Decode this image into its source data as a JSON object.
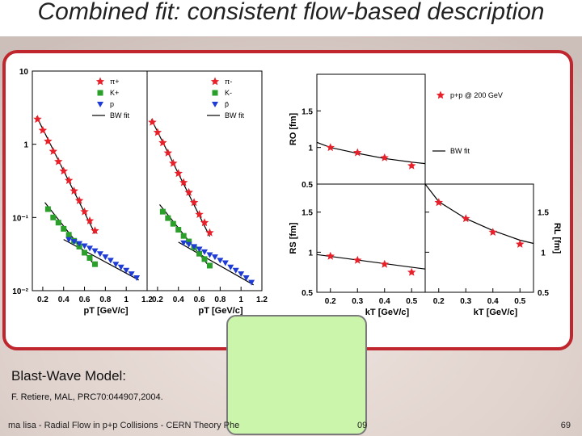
{
  "slide": {
    "title": "Combined fit: consistent flow-based description",
    "model_label": "Blast-Wave Model:",
    "citation": "F. Retiere, MAL, PRC70:044907,2004.",
    "footer": "ma lisa - Radial Flow in p+p Collisions - CERN Theory Phe",
    "footer_year": "09",
    "page_number": "69"
  },
  "colors": {
    "frame": "#c0262d",
    "overlay_box": "#ccf5ac",
    "pion": "#e8202a",
    "kaon": "#2aa02a",
    "proton": "#1f3bd6",
    "fit": "#000000"
  },
  "chart_data": [
    {
      "type": "scatter",
      "panel": "spectra-positive",
      "xlabel": "pT [GeV/c]",
      "ylabel": "",
      "log_y": true,
      "xlim": [
        0.1,
        1.2
      ],
      "ylim": [
        0.01,
        10
      ],
      "x_ticks": [
        "0.2",
        "0.4",
        "0.6",
        "0.8",
        "1",
        "1.2"
      ],
      "y_ticks": [
        "10",
        "1",
        "10-1",
        "10-2"
      ],
      "legend": [
        "π+",
        "K+",
        "p",
        "BW fit"
      ],
      "series": [
        {
          "name": "π+",
          "marker": "star",
          "color": "#e8202a",
          "x": [
            0.15,
            0.2,
            0.25,
            0.3,
            0.35,
            0.4,
            0.45,
            0.5,
            0.55,
            0.6,
            0.65,
            0.7
          ],
          "y": [
            2.2,
            1.55,
            1.1,
            0.8,
            0.58,
            0.43,
            0.32,
            0.23,
            0.17,
            0.12,
            0.09,
            0.066
          ]
        },
        {
          "name": "K+",
          "marker": "square",
          "color": "#2aa02a",
          "x": [
            0.25,
            0.3,
            0.35,
            0.4,
            0.45,
            0.5,
            0.55,
            0.6,
            0.65,
            0.7
          ],
          "y": [
            0.13,
            0.1,
            0.085,
            0.07,
            0.058,
            0.048,
            0.04,
            0.033,
            0.028,
            0.023
          ]
        },
        {
          "name": "p",
          "marker": "triangle-down",
          "color": "#1f3bd6",
          "x": [
            0.45,
            0.5,
            0.55,
            0.6,
            0.65,
            0.7,
            0.75,
            0.8,
            0.85,
            0.9,
            0.95,
            1.0,
            1.05,
            1.1
          ],
          "y": [
            0.05,
            0.047,
            0.044,
            0.041,
            0.038,
            0.035,
            0.032,
            0.029,
            0.026,
            0.023,
            0.021,
            0.019,
            0.017,
            0.015
          ]
        }
      ],
      "fits": [
        {
          "name": "BW fit",
          "x": [
            0.14,
            0.7
          ],
          "y": [
            2.4,
            0.06
          ]
        },
        {
          "name": "BW fit",
          "x": [
            0.22,
            0.7
          ],
          "y": [
            0.16,
            0.022
          ]
        },
        {
          "name": "BW fit",
          "x": [
            0.4,
            1.12
          ],
          "y": [
            0.05,
            0.014
          ]
        }
      ]
    },
    {
      "type": "scatter",
      "panel": "spectra-negative",
      "xlabel": "pT [GeV/c]",
      "ylabel": "",
      "log_y": true,
      "xlim": [
        0.1,
        1.2
      ],
      "ylim": [
        0.01,
        10
      ],
      "x_ticks": [
        "0.2",
        "0.4",
        "0.6",
        "0.8",
        "1",
        "1.2"
      ],
      "legend": [
        "π-",
        "K-",
        "p̄",
        "BW fit"
      ],
      "series": [
        {
          "name": "π-",
          "marker": "star",
          "color": "#e8202a",
          "x": [
            0.15,
            0.2,
            0.25,
            0.3,
            0.35,
            0.4,
            0.45,
            0.5,
            0.55,
            0.6,
            0.65,
            0.7
          ],
          "y": [
            2.0,
            1.45,
            1.05,
            0.76,
            0.55,
            0.4,
            0.3,
            0.22,
            0.16,
            0.11,
            0.085,
            0.062
          ]
        },
        {
          "name": "K-",
          "marker": "square",
          "color": "#2aa02a",
          "x": [
            0.25,
            0.3,
            0.35,
            0.4,
            0.45,
            0.5,
            0.55,
            0.6,
            0.65,
            0.7
          ],
          "y": [
            0.12,
            0.098,
            0.082,
            0.068,
            0.056,
            0.047,
            0.039,
            0.032,
            0.027,
            0.022
          ]
        },
        {
          "name": "p̄",
          "marker": "triangle-down",
          "color": "#1f3bd6",
          "x": [
            0.45,
            0.5,
            0.55,
            0.6,
            0.65,
            0.7,
            0.75,
            0.8,
            0.85,
            0.9,
            0.95,
            1.0,
            1.05,
            1.1
          ],
          "y": [
            0.045,
            0.043,
            0.04,
            0.037,
            0.034,
            0.031,
            0.029,
            0.026,
            0.024,
            0.021,
            0.019,
            0.017,
            0.015,
            0.013
          ]
        }
      ],
      "fits": [
        {
          "name": "BW fit",
          "x": [
            0.14,
            0.7
          ],
          "y": [
            2.2,
            0.055
          ]
        },
        {
          "name": "BW fit",
          "x": [
            0.22,
            0.7
          ],
          "y": [
            0.15,
            0.021
          ]
        },
        {
          "name": "BW fit",
          "x": [
            0.4,
            1.12
          ],
          "y": [
            0.046,
            0.012
          ]
        }
      ]
    },
    {
      "type": "scatter",
      "panel": "RO",
      "ylabel": "RO [fm]",
      "xlim": [
        0.15,
        0.55
      ],
      "ylim": [
        0.5,
        2.0
      ],
      "y_ticks": [
        "1.5",
        "1",
        "0.5"
      ],
      "legend": [
        "p+p @ 200 GeV",
        "BW fit"
      ],
      "series": [
        {
          "name": "p+p @ 200 GeV",
          "marker": "star",
          "color": "#e8202a",
          "x": [
            0.2,
            0.3,
            0.4,
            0.5
          ],
          "y": [
            1.0,
            0.93,
            0.86,
            0.75
          ]
        }
      ],
      "fits": [
        {
          "name": "BW fit",
          "x": [
            0.15,
            0.2,
            0.3,
            0.4,
            0.5,
            0.55
          ],
          "y": [
            1.07,
            1.0,
            0.92,
            0.85,
            0.8,
            0.78
          ]
        }
      ]
    },
    {
      "type": "scatter",
      "panel": "RS",
      "xlabel": "kT [GeV/c]",
      "ylabel": "RS [fm]",
      "xlim": [
        0.15,
        0.55
      ],
      "ylim": [
        0.5,
        1.85
      ],
      "x_ticks": [
        "0.2",
        "0.3",
        "0.4",
        "0.5"
      ],
      "y_ticks": [
        "1.5",
        "1",
        "0.5"
      ],
      "series": [
        {
          "name": "",
          "marker": "star",
          "color": "#e8202a",
          "x": [
            0.2,
            0.3,
            0.4,
            0.5
          ],
          "y": [
            0.95,
            0.9,
            0.85,
            0.75
          ]
        }
      ],
      "fits": [
        {
          "name": "BW fit",
          "x": [
            0.15,
            0.55
          ],
          "y": [
            0.97,
            0.79
          ]
        }
      ]
    },
    {
      "type": "scatter",
      "panel": "RL",
      "xlabel": "kT [GeV/c]",
      "ylabel": "RL [fm]",
      "xlim": [
        0.15,
        0.55
      ],
      "ylim": [
        0.5,
        1.85
      ],
      "x_ticks": [
        "0.2",
        "0.3",
        "0.4",
        "0.5"
      ],
      "y_ticks": [
        "1.5",
        "1",
        "0.5"
      ],
      "series": [
        {
          "name": "",
          "marker": "star",
          "color": "#e8202a",
          "x": [
            0.2,
            0.3,
            0.4,
            0.5
          ],
          "y": [
            1.62,
            1.42,
            1.25,
            1.1
          ]
        }
      ],
      "fits": [
        {
          "name": "BW fit",
          "x": [
            0.15,
            0.2,
            0.3,
            0.4,
            0.5,
            0.55
          ],
          "y": [
            1.85,
            1.63,
            1.42,
            1.27,
            1.15,
            1.11
          ]
        }
      ]
    }
  ]
}
